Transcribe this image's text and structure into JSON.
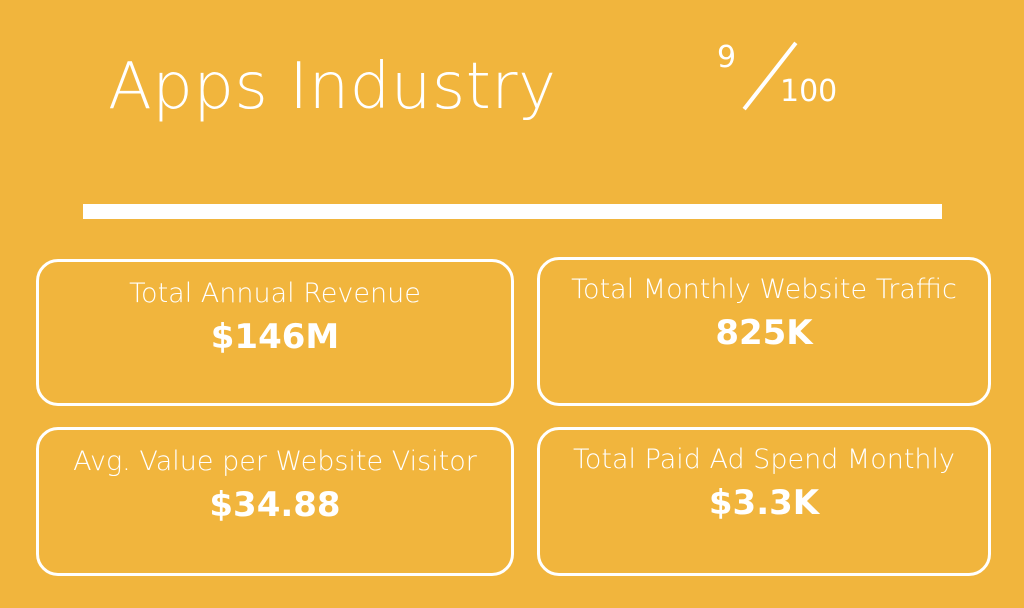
{
  "header": {
    "title": "Apps Industry",
    "score": "9",
    "score_max": "100"
  },
  "stats": [
    {
      "label": "Total Annual Revenue",
      "value": "$146M"
    },
    {
      "label": "Total Monthly Website Traffic",
      "value": "825K"
    },
    {
      "label": "Avg. Value per Website Visitor",
      "value": "$34.88"
    },
    {
      "label": "Total Paid Ad Spend Monthly",
      "value": "$3.3K"
    }
  ],
  "colors": {
    "background": "#F1B53D",
    "foreground": "#FFFFFF"
  }
}
